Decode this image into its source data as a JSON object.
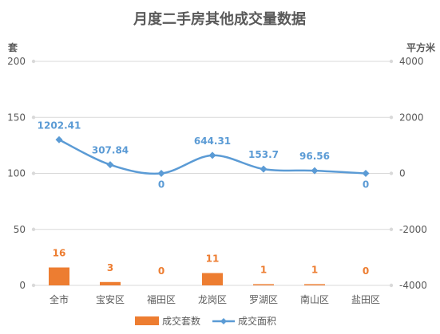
{
  "chart_data": {
    "type": "bar+line",
    "title": "月度二手房其他成交量数据",
    "y_left_unit": "套",
    "y_right_unit": "平方米",
    "categories": [
      "全市",
      "宝安区",
      "福田区",
      "龙岗区",
      "罗湖区",
      "南山区",
      "盐田区"
    ],
    "series": [
      {
        "name": "成交套数",
        "type": "bar",
        "axis": "left",
        "values": [
          16,
          3,
          0,
          11,
          1,
          1,
          0
        ],
        "labels": [
          "16",
          "3",
          "0",
          "11",
          "1",
          "1",
          "0"
        ]
      },
      {
        "name": "成交面积",
        "type": "line",
        "axis": "right",
        "values": [
          1202.41,
          307.84,
          0,
          644.31,
          153.7,
          96.56,
          0
        ],
        "labels": [
          "1202.41",
          "307.84",
          "0",
          "644.31",
          "153.7",
          "96.56",
          "0"
        ]
      }
    ],
    "y_left": {
      "ylim": [
        0,
        200
      ],
      "ticks": [
        "0",
        "50",
        "100",
        "150",
        "200"
      ]
    },
    "y_right": {
      "ylim": [
        -4000,
        4000
      ],
      "ticks": [
        "-4000",
        "-2000",
        "0",
        "2000",
        "4000"
      ]
    },
    "legend_position": "bottom",
    "grid": true,
    "colors": {
      "bar": "#ED7D31",
      "line": "#5B9BD5",
      "axis_text": "#595959",
      "grid": "#D9D9D9",
      "title": "#595959"
    }
  }
}
